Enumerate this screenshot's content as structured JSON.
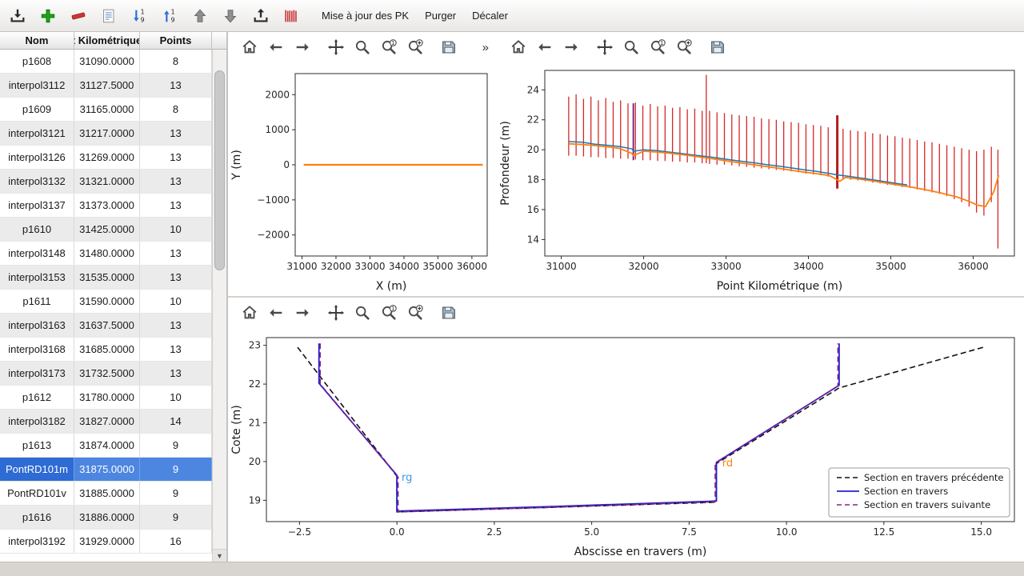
{
  "app_toolbar": {
    "icons": [
      "import",
      "add",
      "remove",
      "edit",
      "sort-desc",
      "sort-asc",
      "move-up",
      "move-down",
      "export",
      "profiles"
    ],
    "actions": [
      "Mise à jour des PK",
      "Purger",
      "Décaler"
    ]
  },
  "plot_toolbar": {
    "icons": [
      "home",
      "back",
      "forward",
      "pan",
      "zoom",
      "zoom-original",
      "zoom-in",
      "save"
    ],
    "overflow": "»"
  },
  "table": {
    "columns": [
      "Nom",
      "t Kilométrique",
      "Points"
    ],
    "selected_row": 17,
    "rows": [
      [
        "p1608",
        "31090.0000",
        "8"
      ],
      [
        "interpol3112",
        "31127.5000",
        "13"
      ],
      [
        "p1609",
        "31165.0000",
        "8"
      ],
      [
        "interpol3121",
        "31217.0000",
        "13"
      ],
      [
        "interpol3126",
        "31269.0000",
        "13"
      ],
      [
        "interpol3132",
        "31321.0000",
        "13"
      ],
      [
        "interpol3137",
        "31373.0000",
        "13"
      ],
      [
        "p1610",
        "31425.0000",
        "10"
      ],
      [
        "interpol3148",
        "31480.0000",
        "13"
      ],
      [
        "interpol3153",
        "31535.0000",
        "13"
      ],
      [
        "p1611",
        "31590.0000",
        "10"
      ],
      [
        "interpol3163",
        "31637.5000",
        "13"
      ],
      [
        "interpol3168",
        "31685.0000",
        "13"
      ],
      [
        "interpol3173",
        "31732.5000",
        "13"
      ],
      [
        "p1612",
        "31780.0000",
        "10"
      ],
      [
        "interpol3182",
        "31827.0000",
        "14"
      ],
      [
        "p1613",
        "31874.0000",
        "9"
      ],
      [
        "PontRD101m",
        "31875.0000",
        "9"
      ],
      [
        "PontRD101v",
        "31885.0000",
        "9"
      ],
      [
        "p1616",
        "31886.0000",
        "9"
      ],
      [
        "interpol3192",
        "31929.0000",
        "16"
      ]
    ]
  },
  "chart_data": [
    {
      "id": "plan",
      "type": "line",
      "xlabel": "X (m)",
      "ylabel": "Y (m)",
      "xlim": [
        30800,
        36450
      ],
      "ylim": [
        -2600,
        2600
      ],
      "xticks": [
        31000,
        32000,
        33000,
        34000,
        35000,
        36000
      ],
      "xticklabels": [
        "31000",
        "32000",
        "33000",
        "34000",
        "35000",
        "36000"
      ],
      "yticks": [
        -2000,
        -1000,
        0,
        1000,
        2000
      ],
      "yticklabels": [
        "−2000",
        "−1000",
        "0",
        "1000",
        "2000"
      ],
      "margins": {
        "l": 84,
        "r": 10,
        "t": 14,
        "b": 50
      },
      "series": [
        {
          "name": "axe-plan",
          "type": "line",
          "color": "#ff7f0e",
          "width": 2.2,
          "points": [
            [
              31050,
              0
            ],
            [
              36320,
              0
            ]
          ]
        }
      ]
    },
    {
      "id": "profile",
      "type": "line+vbars",
      "xlabel": "Point Kilométrique (m)",
      "ylabel": "Profondeur (m)",
      "xlim": [
        30800,
        36500
      ],
      "ylim": [
        12.9,
        25.3
      ],
      "xticks": [
        31000,
        32000,
        33000,
        34000,
        35000,
        36000
      ],
      "xticklabels": [
        "31000",
        "32000",
        "33000",
        "34000",
        "35000",
        "36000"
      ],
      "yticks": [
        14,
        16,
        18,
        20,
        22,
        24
      ],
      "yticklabels": [
        "14",
        "16",
        "18",
        "20",
        "22",
        "24"
      ],
      "margins": {
        "l": 60,
        "r": 8,
        "t": 10,
        "b": 50
      },
      "series": [
        {
          "name": "sections",
          "type": "vbars",
          "color": "#d62728",
          "width": 1.3,
          "bars": [
            [
              31090,
              19.6,
              23.55
            ],
            [
              31180,
              19.6,
              23.7
            ],
            [
              31270,
              19.55,
              23.4
            ],
            [
              31360,
              19.5,
              23.55
            ],
            [
              31450,
              19.5,
              23.3
            ],
            [
              31540,
              19.45,
              23.45
            ],
            [
              31630,
              19.45,
              23.2
            ],
            [
              31720,
              19.4,
              23.3
            ],
            [
              31810,
              19.4,
              23.1
            ],
            [
              31900,
              19.35,
              23.15
            ],
            [
              31990,
              19.3,
              22.95
            ],
            [
              32080,
              19.3,
              23.05
            ],
            [
              32170,
              19.25,
              22.9
            ],
            [
              32260,
              19.25,
              22.95
            ],
            [
              32350,
              19.2,
              22.8
            ],
            [
              32440,
              19.2,
              22.85
            ],
            [
              32530,
              19.15,
              22.7
            ],
            [
              32620,
              19.15,
              22.75
            ],
            [
              32710,
              19.1,
              22.6
            ],
            [
              32760,
              19.1,
              25.0
            ],
            [
              32800,
              19.05,
              22.6
            ],
            [
              32890,
              19.0,
              22.5
            ],
            [
              32980,
              19.0,
              22.45
            ],
            [
              33070,
              18.95,
              22.35
            ],
            [
              33160,
              18.9,
              22.3
            ],
            [
              33250,
              18.85,
              22.25
            ],
            [
              33340,
              18.8,
              22.2
            ],
            [
              33430,
              18.75,
              22.1
            ],
            [
              33520,
              18.7,
              22.05
            ],
            [
              33610,
              18.65,
              22.0
            ],
            [
              33700,
              18.6,
              21.9
            ],
            [
              33790,
              18.55,
              21.85
            ],
            [
              33880,
              18.5,
              21.8
            ],
            [
              33970,
              18.4,
              21.7
            ],
            [
              34060,
              18.35,
              21.65
            ],
            [
              34150,
              18.3,
              21.6
            ],
            [
              34240,
              18.2,
              21.5
            ],
            [
              34420,
              18.1,
              21.4
            ],
            [
              34510,
              18.0,
              21.3
            ],
            [
              34600,
              17.95,
              21.25
            ],
            [
              34690,
              17.9,
              21.2
            ],
            [
              34780,
              17.8,
              21.1
            ],
            [
              34870,
              17.75,
              21.05
            ],
            [
              34960,
              17.65,
              20.95
            ],
            [
              35050,
              17.6,
              20.9
            ],
            [
              35140,
              17.5,
              20.8
            ],
            [
              35230,
              17.45,
              20.75
            ],
            [
              35320,
              17.35,
              20.65
            ],
            [
              35410,
              17.25,
              20.55
            ],
            [
              35500,
              17.15,
              20.5
            ],
            [
              35590,
              17.05,
              20.4
            ],
            [
              35680,
              16.9,
              20.3
            ],
            [
              35770,
              16.7,
              20.2
            ],
            [
              35860,
              16.5,
              20.1
            ],
            [
              35950,
              16.2,
              20.0
            ],
            [
              36040,
              15.8,
              19.9
            ],
            [
              36130,
              15.6,
              20.0
            ],
            [
              36220,
              16.5,
              20.2
            ],
            [
              36300,
              13.4,
              20.0
            ]
          ]
        },
        {
          "name": "section-selectionnee",
          "type": "vbars",
          "color": "#7b2d8b",
          "width": 2,
          "bars": [
            [
              31875,
              19.3,
              23.1
            ]
          ]
        },
        {
          "name": "pont",
          "type": "vbars",
          "color": "#b71c1c",
          "width": 3,
          "bars": [
            [
              34350,
              17.4,
              22.3
            ]
          ]
        },
        {
          "name": "serie-bleue",
          "type": "line",
          "color": "#1f77b4",
          "width": 1.5,
          "points": [
            [
              31090,
              20.55
            ],
            [
              31250,
              20.5
            ],
            [
              31400,
              20.38
            ],
            [
              31550,
              20.3
            ],
            [
              31700,
              20.22
            ],
            [
              31860,
              20.05
            ],
            [
              31875,
              19.9
            ],
            [
              32000,
              20.0
            ],
            [
              32150,
              19.95
            ],
            [
              32300,
              19.85
            ],
            [
              32450,
              19.75
            ],
            [
              32600,
              19.65
            ],
            [
              32760,
              19.55
            ],
            [
              32900,
              19.45
            ],
            [
              33050,
              19.33
            ],
            [
              33200,
              19.22
            ],
            [
              33350,
              19.12
            ],
            [
              33500,
              19.0
            ],
            [
              33650,
              18.9
            ],
            [
              33800,
              18.78
            ],
            [
              33950,
              18.66
            ],
            [
              34100,
              18.55
            ],
            [
              34250,
              18.42
            ],
            [
              34350,
              18.32
            ],
            [
              34500,
              18.22
            ],
            [
              34650,
              18.1
            ],
            [
              34800,
              17.98
            ],
            [
              34950,
              17.85
            ],
            [
              35100,
              17.72
            ],
            [
              35200,
              17.65
            ]
          ]
        },
        {
          "name": "serie-orange",
          "type": "line",
          "color": "#ff7f0e",
          "width": 1.8,
          "points": [
            [
              31090,
              20.4
            ],
            [
              31250,
              20.35
            ],
            [
              31400,
              20.28
            ],
            [
              31550,
              20.2
            ],
            [
              31700,
              20.1
            ],
            [
              31860,
              19.75
            ],
            [
              31875,
              19.6
            ],
            [
              32000,
              19.9
            ],
            [
              32150,
              19.85
            ],
            [
              32300,
              19.78
            ],
            [
              32450,
              19.68
            ],
            [
              32600,
              19.58
            ],
            [
              32760,
              19.45
            ],
            [
              32900,
              19.35
            ],
            [
              33050,
              19.22
            ],
            [
              33200,
              19.1
            ],
            [
              33350,
              18.98
            ],
            [
              33500,
              18.87
            ],
            [
              33650,
              18.75
            ],
            [
              33800,
              18.62
            ],
            [
              33950,
              18.5
            ],
            [
              34100,
              18.4
            ],
            [
              34250,
              18.28
            ],
            [
              34330,
              18.05
            ],
            [
              34380,
              17.9
            ],
            [
              34450,
              18.15
            ],
            [
              34600,
              18.05
            ],
            [
              34800,
              17.9
            ],
            [
              35000,
              17.72
            ],
            [
              35200,
              17.55
            ],
            [
              35400,
              17.35
            ],
            [
              35600,
              17.12
            ],
            [
              35800,
              16.85
            ],
            [
              35950,
              16.55
            ],
            [
              36050,
              16.3
            ],
            [
              36150,
              16.2
            ],
            [
              36250,
              17.2
            ],
            [
              36310,
              18.3
            ]
          ]
        }
      ]
    },
    {
      "id": "section",
      "type": "line",
      "xlabel": "Abscisse en travers (m)",
      "ylabel": "Cote (m)",
      "xlim": [
        -3.35,
        15.85
      ],
      "ylim": [
        18.45,
        23.2
      ],
      "xticks": [
        -2.5,
        0,
        2.5,
        5,
        7.5,
        10,
        12.5,
        15
      ],
      "xticklabels": [
        "−2.5",
        "0.0",
        "2.5",
        "5.0",
        "7.5",
        "10.0",
        "12.5",
        "15.0"
      ],
      "yticks": [
        19,
        20,
        21,
        22,
        23
      ],
      "yticklabels": [
        "19",
        "20",
        "21",
        "22",
        "23"
      ],
      "margins": {
        "l": 48,
        "r": 12,
        "t": 12,
        "b": 50
      },
      "series": [
        {
          "name": "Section en travers précédente",
          "type": "line",
          "color": "#111111",
          "dash": "7,4",
          "width": 1.6,
          "points": [
            [
              -2.55,
              22.95
            ],
            [
              0,
              19.62
            ],
            [
              0,
              18.7
            ],
            [
              4,
              18.82
            ],
            [
              8.2,
              18.95
            ],
            [
              8.2,
              19.95
            ],
            [
              11.35,
              21.9
            ],
            [
              15.05,
              22.95
            ]
          ]
        },
        {
          "name": "Section en travers",
          "type": "line",
          "color": "#2222cc",
          "width": 1.8,
          "points": [
            [
              -2,
              23.05
            ],
            [
              -2,
              22.02
            ],
            [
              0,
              19.65
            ],
            [
              0,
              18.72
            ],
            [
              4,
              18.84
            ],
            [
              8.2,
              18.98
            ],
            [
              8.2,
              19.98
            ],
            [
              11.35,
              21.97
            ],
            [
              11.35,
              23.05
            ]
          ]
        },
        {
          "name": "Section en travers suivante",
          "type": "line",
          "color": "#882288",
          "dash": "7,4",
          "width": 1.6,
          "points": [
            [
              -1.97,
              23.05
            ],
            [
              -1.97,
              22.0
            ],
            [
              0.03,
              19.6
            ],
            [
              0.03,
              18.7
            ],
            [
              4,
              18.82
            ],
            [
              8.17,
              18.96
            ],
            [
              8.17,
              19.95
            ],
            [
              11.32,
              21.95
            ],
            [
              11.32,
              23.05
            ]
          ]
        }
      ],
      "annotations": [
        {
          "text": "rg",
          "x": 0.12,
          "y": 19.5,
          "color": "#3c97e8"
        },
        {
          "text": "rd",
          "x": 8.35,
          "y": 19.87,
          "color": "#ff7f0e"
        }
      ],
      "legend": {
        "position": "lower right",
        "entries": [
          {
            "label": "Section en travers précédente",
            "color": "#111111",
            "dash": "6,4",
            "width": 1.6
          },
          {
            "label": "Section en travers",
            "color": "#2222cc",
            "width": 1.8
          },
          {
            "label": "Section en travers suivante",
            "color": "#882288",
            "dash": "6,4",
            "width": 1.6
          }
        ]
      }
    }
  ]
}
